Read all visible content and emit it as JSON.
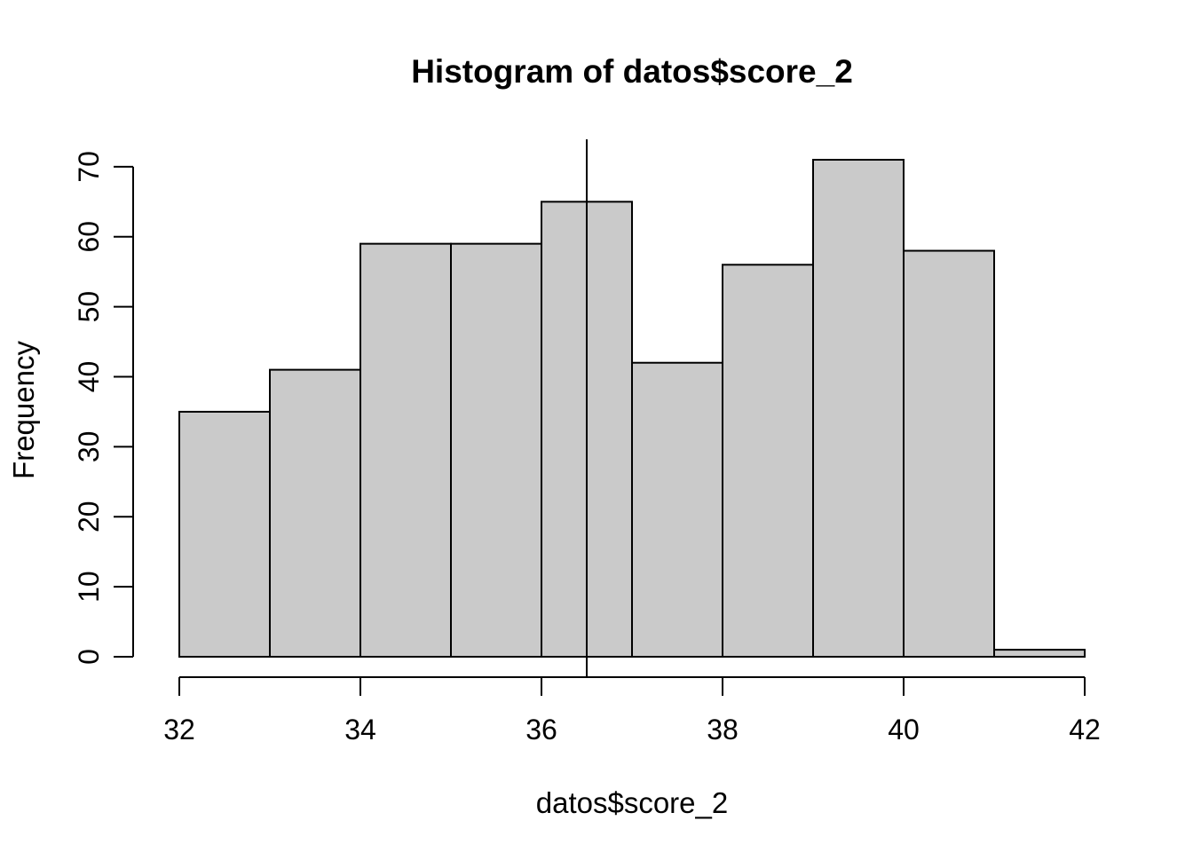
{
  "title": "Histogram of datos$score_2",
  "chart_data": {
    "type": "bar",
    "subtype": "histogram",
    "title": "Histogram of datos$score_2",
    "xlabel": "datos$score_2",
    "ylabel": "Frequency",
    "bin_breaks": [
      32,
      33,
      34,
      35,
      36,
      37,
      38,
      39,
      40,
      41,
      42
    ],
    "counts": [
      35,
      41,
      59,
      59,
      65,
      42,
      56,
      71,
      58,
      1
    ],
    "x_ticks": [
      "32",
      "34",
      "36",
      "38",
      "40",
      "42"
    ],
    "y_ticks": [
      "0",
      "10",
      "20",
      "30",
      "40",
      "50",
      "60",
      "70"
    ],
    "xlim": [
      32,
      42
    ],
    "ylim": [
      0,
      71
    ],
    "vline_x": 36.5,
    "grid": false,
    "colors": {
      "bar_fill": "#CACACA",
      "bar_border": "#000000",
      "axis": "#000000",
      "vline": "#000000",
      "background": "#FFFFFF",
      "text": "#000000"
    }
  }
}
